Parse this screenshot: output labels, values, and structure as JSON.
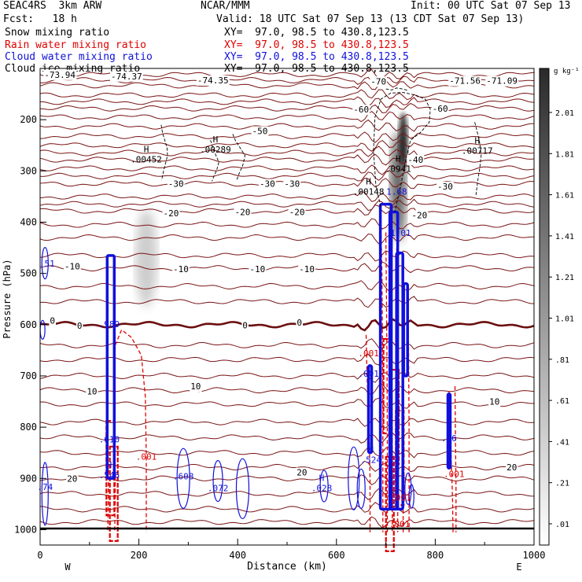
{
  "header": {
    "model": "SEAC4RS  3km ARW",
    "org": "NCAR/MMM",
    "init": "Init: 00 UTC Sat 07 Sep 13",
    "fcst": "Fcst:   18 h",
    "valid": "Valid: 18 UTC Sat 07 Sep 13 (13 CDT Sat 07 Sep 13)"
  },
  "fields": [
    {
      "name": "Snow mixing ratio",
      "xy": "XY=  97.0, 98.5 to 430.8,123.5",
      "color": "#000000"
    },
    {
      "name": "Rain water mixing ratio",
      "xy": "XY=  97.0, 98.5 to 430.8,123.5",
      "color": "#e00000"
    },
    {
      "name": "Cloud water mixing ratio",
      "xy": "XY=  97.0, 98.5 to 430.8,123.5",
      "color": "#1010dd"
    },
    {
      "name": "Cloud ice mixing ratio",
      "xy": "XY=  97.0, 98.5 to 430.8,123.5",
      "color": "#000000"
    }
  ],
  "colors": {
    "temp_contour": "#7a1515",
    "zero_contour": "#6b0f0f",
    "rain": "#e00000",
    "cloud_water": "#1010dd",
    "ice": "#000000"
  },
  "chart_data": {
    "type": "heatmap",
    "xlabel": "Distance (km)",
    "ylabel": "Pressure (hPa)",
    "xlim": [
      0,
      1000
    ],
    "ylim": [
      1030,
      100
    ],
    "x_ticks": [
      "0",
      "200",
      "400",
      "600",
      "800",
      "1000"
    ],
    "y_ticks": [
      "200",
      "300",
      "400",
      "500",
      "600",
      "700",
      "800",
      "900",
      "1000"
    ],
    "west_label": "W",
    "east_label": "E",
    "colorbar": {
      "unit": "g kg⁻¹",
      "labels": [
        "2.01",
        "1.81",
        "1.61",
        "1.41",
        "1.21",
        "1.01",
        ".81",
        ".61",
        ".41",
        ".21",
        ".01"
      ]
    },
    "temperature_contours": [
      {
        "label": "-70",
        "p": 133
      },
      {
        "label": "-60",
        "p": 178
      },
      {
        "label": "-50",
        "p": 232
      },
      {
        "label": "-40",
        "p": 278
      },
      {
        "label": "-30",
        "p": 325
      },
      {
        "label": "-20",
        "p": 378
      },
      {
        "label": "-10",
        "p": 490
      },
      {
        "label": "0",
        "p": 600
      },
      {
        "label": "10",
        "p": 755
      },
      {
        "label": "20",
        "p": 900
      }
    ],
    "contour_labels": [
      {
        "text": "-73.94",
        "x": 40,
        "p": 112
      },
      {
        "text": "-74.37",
        "x": 175,
        "p": 115
      },
      {
        "text": "-74.35",
        "x": 350,
        "p": 123
      },
      {
        "text": "-70",
        "x": 685,
        "p": 125
      },
      {
        "text": "-71.56",
        "x": 860,
        "p": 124
      },
      {
        "text": "-71.09",
        "x": 935,
        "p": 124
      },
      {
        "text": "-60",
        "x": 650,
        "p": 180
      },
      {
        "text": "-60",
        "x": 810,
        "p": 178
      },
      {
        "text": "-50",
        "x": 445,
        "p": 222
      },
      {
        "text": "-40",
        "x": 760,
        "p": 278
      },
      {
        "text": "-30",
        "x": 275,
        "p": 325
      },
      {
        "text": "-30",
        "x": 460,
        "p": 325
      },
      {
        "text": "-30",
        "x": 510,
        "p": 325
      },
      {
        "text": "-30",
        "x": 820,
        "p": 330
      },
      {
        "text": "-20",
        "x": 265,
        "p": 382
      },
      {
        "text": "-20",
        "x": 410,
        "p": 380
      },
      {
        "text": "-20",
        "x": 520,
        "p": 380
      },
      {
        "text": "-20",
        "x": 768,
        "p": 386
      },
      {
        "text": "-10",
        "x": 65,
        "p": 486
      },
      {
        "text": "-10",
        "x": 285,
        "p": 491
      },
      {
        "text": "-10",
        "x": 440,
        "p": 491
      },
      {
        "text": "-10",
        "x": 540,
        "p": 491
      },
      {
        "text": "0",
        "x": 25,
        "p": 592
      },
      {
        "text": "0",
        "x": 80,
        "p": 602
      },
      {
        "text": "0",
        "x": 415,
        "p": 601
      },
      {
        "text": "0",
        "x": 525,
        "p": 596
      },
      {
        "text": "10",
        "x": 105,
        "p": 730
      },
      {
        "text": "10",
        "x": 315,
        "p": 720
      },
      {
        "text": "10",
        "x": 920,
        "p": 750
      },
      {
        "text": "20",
        "x": 65,
        "p": 900
      },
      {
        "text": "20",
        "x": 530,
        "p": 888
      },
      {
        "text": "20",
        "x": 955,
        "p": 878
      }
    ],
    "max_labels": [
      {
        "label": "H",
        "value": ".00452",
        "x": 215,
        "p": 282,
        "color": "#000000"
      },
      {
        "label": "H",
        "value": ".00289",
        "x": 355,
        "p": 263,
        "color": "#000000"
      },
      {
        "label": "H",
        "value": ".0941",
        "x": 725,
        "p": 300,
        "color": "#000000"
      },
      {
        "label": "H",
        "value": ".00148",
        "x": 665,
        "p": 345,
        "color": "#000000"
      },
      {
        "label": "H",
        "value": ".00717",
        "x": 885,
        "p": 265,
        "color": "#000000"
      },
      {
        "label": "",
        "value": "1.68",
        "x": 722,
        "p": 345,
        "color": "#1010dd"
      },
      {
        "label": "",
        "value": "1.01",
        "x": 730,
        "p": 425,
        "color": "#1010dd"
      },
      {
        "label": "",
        "value": ".51",
        "x": 14,
        "p": 485,
        "color": "#1010dd"
      },
      {
        "label": "",
        "value": ".989",
        "x": 140,
        "p": 603,
        "color": "#1010dd"
      },
      {
        "label": "",
        "value": ".001",
        "x": 665,
        "p": 660,
        "color": "#e00000"
      },
      {
        "label": "",
        "value": ".001",
        "x": 665,
        "p": 700,
        "color": "#1010dd"
      },
      {
        "label": "",
        "value": ".610",
        "x": 140,
        "p": 828,
        "color": "#1010dd"
      },
      {
        "label": "",
        "value": ".001",
        "x": 215,
        "p": 862,
        "color": "#e00000"
      },
      {
        "label": "H",
        "value": ".524",
        "x": 670,
        "p": 868,
        "color": "#1010dd"
      },
      {
        "label": "H",
        "value": ".16",
        "x": 828,
        "p": 826,
        "color": "#1010dd"
      },
      {
        "label": "",
        "value": ".001",
        "x": 838,
        "p": 896,
        "color": "#e00000"
      },
      {
        "label": "H",
        "value": ".546",
        "x": 140,
        "p": 898,
        "color": "#1010dd"
      },
      {
        "label": "",
        "value": ".608",
        "x": 290,
        "p": 900,
        "color": "#1010dd"
      },
      {
        "label": "",
        "value": ".072",
        "x": 360,
        "p": 923,
        "color": "#1010dd"
      },
      {
        "label": "H",
        "value": ".028",
        "x": 570,
        "p": 923,
        "color": "#1010dd"
      },
      {
        "label": "",
        "value": ".74",
        "x": 10,
        "p": 921,
        "color": "#1010dd"
      },
      {
        "label": "",
        "value": ".001",
        "x": 730,
        "p": 942,
        "color": "#e00000"
      },
      {
        "label": "",
        "value": ".001",
        "x": 728,
        "p": 993,
        "color": "#e00000"
      }
    ]
  }
}
